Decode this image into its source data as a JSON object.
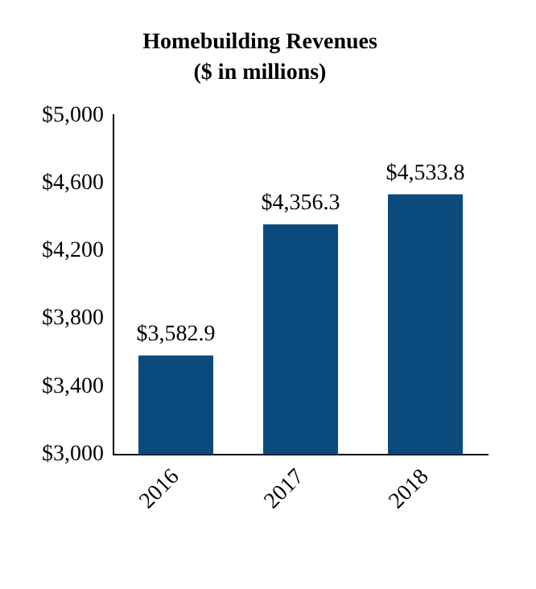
{
  "chart_data": {
    "type": "bar",
    "title": "Homebuilding Revenues",
    "subtitle": "($ in millions)",
    "categories": [
      "2016",
      "2017",
      "2018"
    ],
    "values": [
      3582.9,
      4356.3,
      4533.8
    ],
    "value_labels": [
      "$3,582.9",
      "$4,356.3",
      "$4,533.8"
    ],
    "color": "#0b4a7d",
    "ylim": [
      3000,
      5000
    ],
    "yticks": [
      {
        "value": 3000,
        "label": "$3,000"
      },
      {
        "value": 3400,
        "label": "$3,400"
      },
      {
        "value": 3800,
        "label": "$3,800"
      },
      {
        "value": 4200,
        "label": "$4,200"
      },
      {
        "value": 4600,
        "label": "$4,600"
      },
      {
        "value": 5000,
        "label": "$5,000"
      }
    ],
    "grid": false,
    "legend": false
  }
}
